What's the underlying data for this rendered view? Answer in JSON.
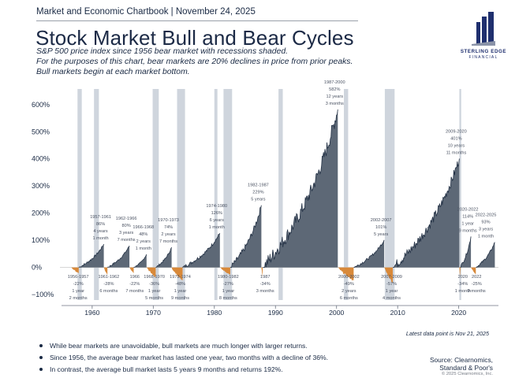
{
  "header": "Market and Economic Chartbook | November 24, 2025",
  "title": "Stock Market Bull and Bear Cycles",
  "subtitle_lines": [
    "S&P 500 price index since 1956 bear market with recessions shaded.",
    "For the purposes of this chart, bear markets are 20% declines in price from prior peaks.",
    "Bull markets begin at each market bottom."
  ],
  "logo": {
    "name": "STERLING EDGE",
    "tagline": "FINANCIAL",
    "icon": "bar-building-icon"
  },
  "colors": {
    "bull": "#5d6876",
    "bull_line": "#223044",
    "bear": "#d8893a",
    "recession": "#cfd5dd",
    "text": "#1a2a44"
  },
  "chart_data": {
    "type": "area",
    "title": "Stock Market Bull and Bear Cycles",
    "xlabel": "",
    "ylabel": "",
    "xlim": [
      1955.5,
      2026.5
    ],
    "ylim": [
      -120,
      640
    ],
    "y_ticks": [
      -100,
      0,
      100,
      200,
      300,
      400,
      500,
      600
    ],
    "y_tick_labels": [
      "−100%",
      "0%",
      "100%",
      "200%",
      "300%",
      "400%",
      "500%",
      "600%"
    ],
    "x_ticks": [
      1960,
      1970,
      1980,
      1990,
      2000,
      2010,
      2020
    ],
    "x_tick_labels": [
      "1960",
      "1970",
      "1980",
      "1990",
      "2000",
      "2010",
      "2020"
    ],
    "recessions": [
      [
        1957.6,
        1958.3
      ],
      [
        1960.3,
        1961.1
      ],
      [
        1969.9,
        1970.9
      ],
      [
        1973.9,
        1975.2
      ],
      [
        1980.0,
        1980.5
      ],
      [
        1981.5,
        1982.9
      ],
      [
        1990.5,
        1991.2
      ],
      [
        2001.2,
        2001.9
      ],
      [
        2007.9,
        2009.5
      ],
      [
        2020.1,
        2020.4
      ]
    ],
    "bull_markets": [
      {
        "start": 1957.8,
        "end": 1961.9,
        "gain": 86,
        "label": [
          "1957-1961",
          "86%",
          "4 years",
          "1 month"
        ]
      },
      {
        "start": 1962.5,
        "end": 1966.1,
        "gain": 80,
        "label": [
          "1962-1966",
          "80%",
          "3 years",
          "7 months"
        ]
      },
      {
        "start": 1966.8,
        "end": 1968.9,
        "gain": 48,
        "label": [
          "1966-1968",
          "48%",
          "2 years",
          "1 month"
        ]
      },
      {
        "start": 1970.4,
        "end": 1973.0,
        "gain": 74,
        "label": [
          "1970-1973",
          "74%",
          "2 years",
          "7 months"
        ]
      },
      {
        "start": 1974.8,
        "end": 1980.9,
        "gain": 126,
        "label": [
          "1974-1980",
          "126%",
          "6 years",
          "1 month"
        ]
      },
      {
        "start": 1982.6,
        "end": 1987.7,
        "gain": 229,
        "label": [
          "1982-1987",
          "229%",
          "5 years"
        ]
      },
      {
        "start": 1987.9,
        "end": 2000.2,
        "gain": 582,
        "label": [
          "1987-2000",
          "582%",
          "12 years",
          "3 months"
        ]
      },
      {
        "start": 2002.8,
        "end": 2007.8,
        "gain": 101,
        "label": [
          "2002-2007",
          "101%",
          "5 years"
        ]
      },
      {
        "start": 2009.2,
        "end": 2020.1,
        "gain": 401,
        "label": [
          "2009-2020",
          "401%",
          "10 years",
          "11 months"
        ]
      },
      {
        "start": 2020.2,
        "end": 2022.0,
        "gain": 114,
        "label": [
          "2020-2022",
          "114%",
          "1 year",
          "9 months"
        ]
      },
      {
        "start": 2022.8,
        "end": 2025.9,
        "gain": 93,
        "label": [
          "2022-2025",
          "93%",
          "3 years",
          "1 month"
        ]
      }
    ],
    "bear_markets": [
      {
        "start": 1956.6,
        "end": 1957.8,
        "decline": -22,
        "label": [
          "1956-1957",
          "-22%",
          "1 year",
          "2 months"
        ]
      },
      {
        "start": 1961.9,
        "end": 1962.5,
        "decline": -28,
        "label": [
          "1961-1962",
          "-28%",
          "6 months"
        ]
      },
      {
        "start": 1966.1,
        "end": 1966.8,
        "decline": -22,
        "label": [
          "1966",
          "-22%",
          "7 months"
        ]
      },
      {
        "start": 1968.9,
        "end": 1970.4,
        "decline": -36,
        "label": [
          "1968-1970",
          "-36%",
          "1 year",
          "5 months"
        ]
      },
      {
        "start": 1973.0,
        "end": 1974.8,
        "decline": -48,
        "label": [
          "1973-1974",
          "-48%",
          "1 year",
          "9 months"
        ]
      },
      {
        "start": 1980.9,
        "end": 1982.6,
        "decline": -27,
        "label": [
          "1980-1982",
          "-27%",
          "1 year",
          "8 months"
        ]
      },
      {
        "start": 1987.7,
        "end": 1987.9,
        "decline": -34,
        "label": [
          "1987",
          "-34%",
          "3 months"
        ]
      },
      {
        "start": 2000.2,
        "end": 2002.8,
        "decline": -49,
        "label": [
          "2000-2002",
          "-49%",
          "2 years",
          "6 months"
        ]
      },
      {
        "start": 2007.8,
        "end": 2009.2,
        "decline": -57,
        "label": [
          "2007-2009",
          "-57%",
          "1 year",
          "4 months"
        ]
      },
      {
        "start": 2020.1,
        "end": 2020.2,
        "decline": -34,
        "label": [
          "2020",
          "-34%",
          "1 month"
        ]
      },
      {
        "start": 2022.0,
        "end": 2022.8,
        "decline": -25,
        "label": [
          "2022",
          "-25%",
          "9 months"
        ]
      }
    ]
  },
  "latest_note": "Latest data point is Nov 21, 2025",
  "bullets": [
    "While bear markets are unavoidable, bull markets are much longer with larger returns.",
    "Since 1956, the average bear market has lasted one year, two months with a decline of 36%.",
    "In contrast, the average bull market lasts 5 years 9 months and returns 192%."
  ],
  "source": [
    "Source: Clearnomics,",
    "Standard & Poor's"
  ],
  "copyright": "© 2025 Clearnomics, Inc."
}
